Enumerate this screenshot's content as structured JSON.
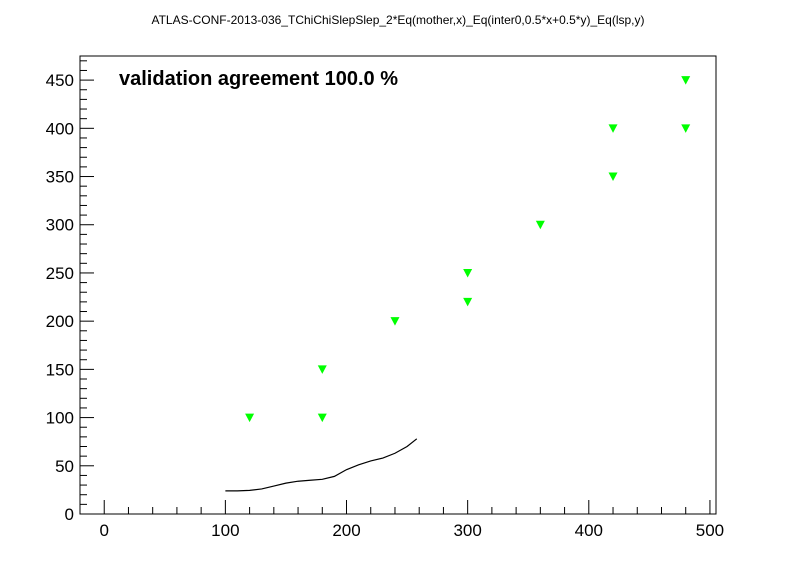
{
  "chart_data": {
    "type": "scatter",
    "title": "ATLAS-CONF-2013-036_TChiChiSlepSlep_2*Eq(mother,x)_Eq(inter0,0.5*x+0.5*y)_Eq(lsp,y)",
    "annotation": "validation agreement 100.0 %",
    "xlabel": "",
    "ylabel": "",
    "xlim": [
      -20,
      505
    ],
    "ylim": [
      0,
      475
    ],
    "x_ticks": [
      0,
      100,
      200,
      300,
      400,
      500
    ],
    "y_ticks": [
      0,
      50,
      100,
      150,
      200,
      250,
      300,
      350,
      400,
      450
    ],
    "grid": false,
    "series": [
      {
        "marker": "triangle-down",
        "color": "#00ff00",
        "points": [
          {
            "x": 120,
            "y": 100
          },
          {
            "x": 180,
            "y": 100
          },
          {
            "x": 180,
            "y": 150
          },
          {
            "x": 240,
            "y": 200
          },
          {
            "x": 300,
            "y": 220
          },
          {
            "x": 300,
            "y": 250
          },
          {
            "x": 360,
            "y": 300
          },
          {
            "x": 420,
            "y": 350
          },
          {
            "x": 420,
            "y": 400
          },
          {
            "x": 480,
            "y": 400
          },
          {
            "x": 480,
            "y": 450
          }
        ]
      },
      {
        "marker": "line",
        "color": "#000000",
        "points": [
          {
            "x": 100,
            "y": 24
          },
          {
            "x": 110,
            "y": 24
          },
          {
            "x": 120,
            "y": 24.5
          },
          {
            "x": 130,
            "y": 26
          },
          {
            "x": 140,
            "y": 29
          },
          {
            "x": 150,
            "y": 32
          },
          {
            "x": 160,
            "y": 34
          },
          {
            "x": 170,
            "y": 35
          },
          {
            "x": 180,
            "y": 36
          },
          {
            "x": 190,
            "y": 39
          },
          {
            "x": 200,
            "y": 46
          },
          {
            "x": 210,
            "y": 51
          },
          {
            "x": 220,
            "y": 55
          },
          {
            "x": 230,
            "y": 58
          },
          {
            "x": 240,
            "y": 63
          },
          {
            "x": 250,
            "y": 70
          },
          {
            "x": 258,
            "y": 78
          }
        ]
      }
    ]
  }
}
